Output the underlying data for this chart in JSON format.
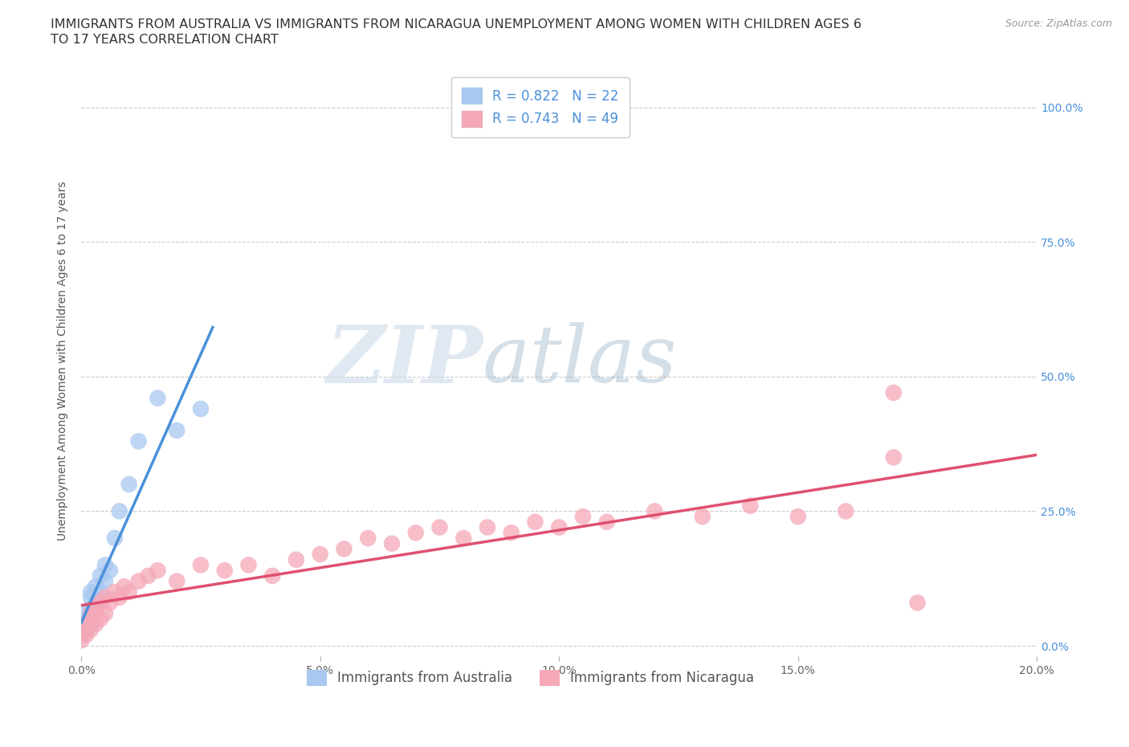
{
  "title_line1": "IMMIGRANTS FROM AUSTRALIA VS IMMIGRANTS FROM NICARAGUA UNEMPLOYMENT AMONG WOMEN WITH CHILDREN AGES 6",
  "title_line2": "TO 17 YEARS CORRELATION CHART",
  "source": "Source: ZipAtlas.com",
  "ylabel": "Unemployment Among Women with Children Ages 6 to 17 years",
  "watermark_zip": "ZIP",
  "watermark_atlas": "atlas",
  "australia_R": 0.822,
  "australia_N": 22,
  "nicaragua_R": 0.743,
  "nicaragua_N": 49,
  "australia_color": "#a8c8f0",
  "australia_line_color": "#4a90d9",
  "nicaragua_color": "#f5a8b8",
  "nicaragua_line_color": "#e05070",
  "background_color": "#ffffff",
  "xlim": [
    0.0,
    0.2
  ],
  "ylim": [
    -0.02,
    1.08
  ],
  "yticks": [
    0.0,
    0.25,
    0.5,
    0.75,
    1.0
  ],
  "ytick_labels": [
    "0.0%",
    "25.0%",
    "50.0%",
    "75.0%",
    "100.0%"
  ],
  "xticks": [
    0.0,
    0.05,
    0.1,
    0.15,
    0.2
  ],
  "xtick_labels": [
    "0.0%",
    "5.0%",
    "10.0%",
    "15.0%",
    "20.0%"
  ],
  "australia_x": [
    0.0,
    0.001,
    0.001,
    0.001,
    0.002,
    0.002,
    0.002,
    0.002,
    0.003,
    0.003,
    0.004,
    0.004,
    0.005,
    0.005,
    0.006,
    0.007,
    0.008,
    0.01,
    0.012,
    0.016,
    0.02,
    0.025
  ],
  "australia_y": [
    0.02,
    0.03,
    0.05,
    0.06,
    0.04,
    0.07,
    0.09,
    0.1,
    0.08,
    0.11,
    0.1,
    0.13,
    0.12,
    0.15,
    0.14,
    0.2,
    0.25,
    0.3,
    0.38,
    0.46,
    0.4,
    0.44
  ],
  "nicaragua_x": [
    0.0,
    0.001,
    0.001,
    0.001,
    0.002,
    0.002,
    0.002,
    0.003,
    0.003,
    0.003,
    0.004,
    0.004,
    0.005,
    0.005,
    0.006,
    0.007,
    0.008,
    0.009,
    0.01,
    0.012,
    0.014,
    0.016,
    0.02,
    0.025,
    0.03,
    0.035,
    0.04,
    0.045,
    0.05,
    0.055,
    0.06,
    0.065,
    0.07,
    0.075,
    0.08,
    0.085,
    0.09,
    0.095,
    0.1,
    0.105,
    0.11,
    0.12,
    0.13,
    0.14,
    0.15,
    0.16,
    0.17,
    0.175,
    0.17
  ],
  "nicaragua_y": [
    0.01,
    0.02,
    0.03,
    0.04,
    0.03,
    0.05,
    0.06,
    0.04,
    0.06,
    0.07,
    0.05,
    0.08,
    0.06,
    0.09,
    0.08,
    0.1,
    0.09,
    0.11,
    0.1,
    0.12,
    0.13,
    0.14,
    0.12,
    0.15,
    0.14,
    0.15,
    0.13,
    0.16,
    0.17,
    0.18,
    0.2,
    0.19,
    0.21,
    0.22,
    0.2,
    0.22,
    0.21,
    0.23,
    0.22,
    0.24,
    0.23,
    0.25,
    0.24,
    0.26,
    0.24,
    0.25,
    0.47,
    0.08,
    0.35
  ],
  "title_fontsize": 11.5,
  "axis_label_fontsize": 10,
  "tick_fontsize": 10,
  "legend_fontsize": 12,
  "source_fontsize": 9
}
